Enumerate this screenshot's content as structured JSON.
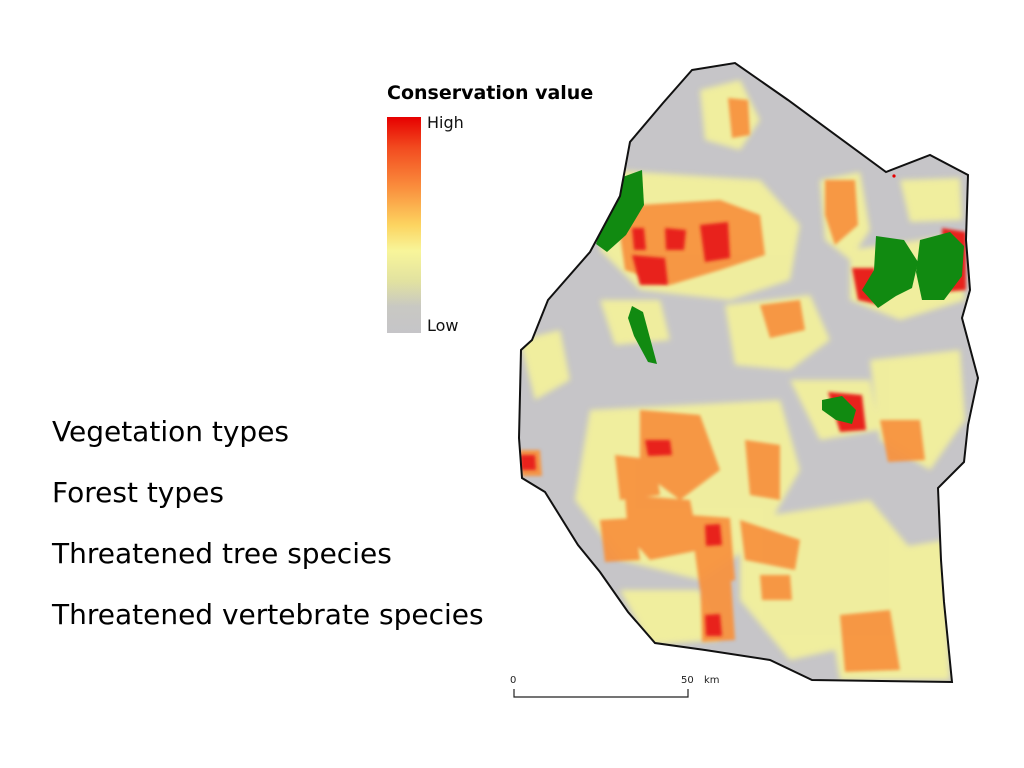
{
  "legend": {
    "title": "Conservation value",
    "high_label": "High",
    "low_label": "Low",
    "ramp_colors": [
      "#e60000",
      "#f24a1f",
      "#fa8c3c",
      "#fcd460",
      "#f8f59a",
      "#e2e2a0",
      "#c8c8c3",
      "#c6c5c8"
    ]
  },
  "layers": [
    "Vegetation types",
    "Forest types",
    "Threatened tree species",
    "Threatened vertebrate species"
  ],
  "scalebar": {
    "start": "0",
    "end": "50",
    "unit": "km"
  },
  "map_colors": {
    "background_low": "#c6c5c8",
    "protected_area": "#118a11",
    "boundary": "#111111"
  }
}
